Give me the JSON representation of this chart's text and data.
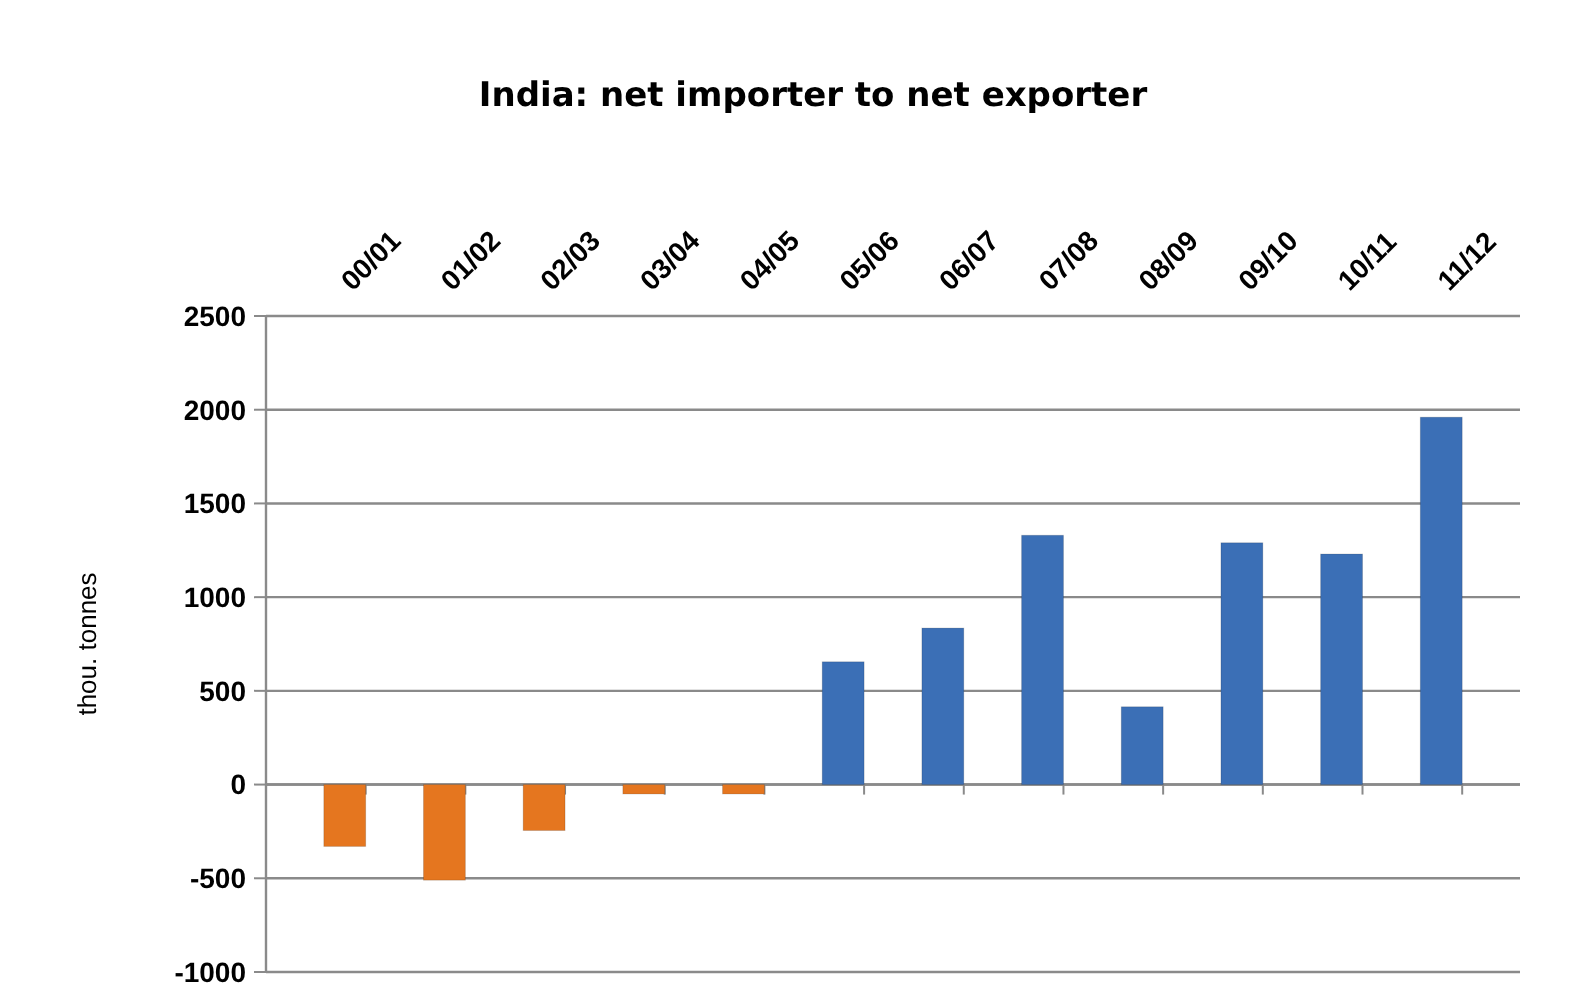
{
  "chart_data": {
    "type": "bar",
    "title": "India: net importer to net exporter",
    "ylabel": "thou. tonnes",
    "categories": [
      "00/01",
      "01/02",
      "02/03",
      "03/04",
      "04/05",
      "05/06",
      "06/07",
      "07/08",
      "08/09",
      "09/10",
      "10/11",
      "11/12"
    ],
    "values": [
      -330,
      -510,
      -245,
      -50,
      -50,
      655,
      835,
      1330,
      415,
      1290,
      1230,
      1960
    ],
    "colors": [
      "#e5761f",
      "#e5761f",
      "#e5761f",
      "#e5761f",
      "#e5761f",
      "#3b6fb6",
      "#3b6fb6",
      "#3b6fb6",
      "#3b6fb6",
      "#3b6fb6",
      "#3b6fb6",
      "#3b6fb6"
    ],
    "ylim": [
      -1000,
      2500
    ],
    "yticks": [
      -1000,
      -500,
      0,
      500,
      1000,
      1500,
      2000,
      2500
    ],
    "grid": "y"
  }
}
